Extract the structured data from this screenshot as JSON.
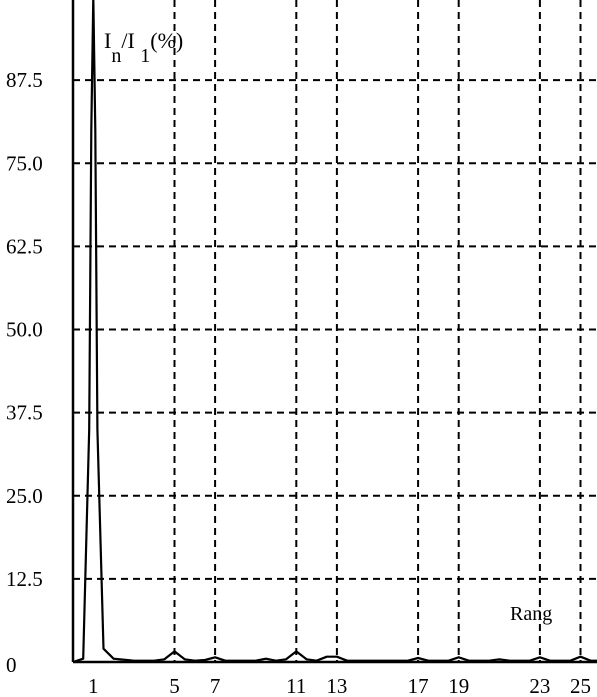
{
  "chart_data": {
    "type": "line",
    "ylabel": "I n/I 1(%)",
    "ylabel_parts": {
      "main1": "I",
      "sub1": "n",
      "sep": "/I ",
      "sub2": "1",
      "suffix": "(%)"
    },
    "xlabel": "Rang",
    "y_ticks": [
      "0",
      "12.5",
      "25.0",
      "37.5",
      "50.0",
      "62.5",
      "75.0",
      "87.5"
    ],
    "y_tick_values": [
      0,
      12.5,
      25.0,
      37.5,
      50.0,
      62.5,
      75.0,
      87.5
    ],
    "x_ticks": [
      "1",
      "5",
      "7",
      "11",
      "13",
      "17",
      "19",
      "23",
      "25"
    ],
    "x_tick_values": [
      1,
      5,
      7,
      11,
      13,
      17,
      19,
      23,
      25
    ],
    "xlim": [
      0,
      26
    ],
    "ylim": [
      0,
      100
    ],
    "grid": true,
    "grid_style": "dashed",
    "series": [
      {
        "x": [
          0,
          0.5,
          0.8,
          0.9,
          1.0,
          1.1,
          1.2,
          1.5,
          2,
          3,
          4,
          4.5,
          5,
          5.5,
          6,
          6.5,
          7,
          7.5,
          8,
          9,
          9.5,
          10,
          10.5,
          11,
          11.5,
          12,
          12.5,
          13,
          13.5,
          14,
          15,
          16,
          16.5,
          17,
          17.5,
          18,
          18.5,
          19,
          19.5,
          20,
          20.5,
          21,
          21.5,
          22,
          22.5,
          23,
          23.5,
          24,
          24.5,
          25,
          25.5,
          26
        ],
        "y": [
          0,
          0.5,
          35,
          80,
          100,
          80,
          35,
          2,
          0.5,
          0.2,
          0.2,
          0.4,
          1.6,
          0.4,
          0.2,
          0.3,
          0.7,
          0.2,
          0.2,
          0.2,
          0.5,
          0.2,
          0.4,
          1.6,
          0.4,
          0.2,
          0.8,
          0.8,
          0.2,
          0.2,
          0.2,
          0.2,
          0.2,
          0.6,
          0.2,
          0.2,
          0.2,
          0.7,
          0.2,
          0.2,
          0.2,
          0.4,
          0.2,
          0.2,
          0.2,
          0.7,
          0.2,
          0.2,
          0.2,
          0.8,
          0.2,
          0.2
        ]
      }
    ]
  }
}
